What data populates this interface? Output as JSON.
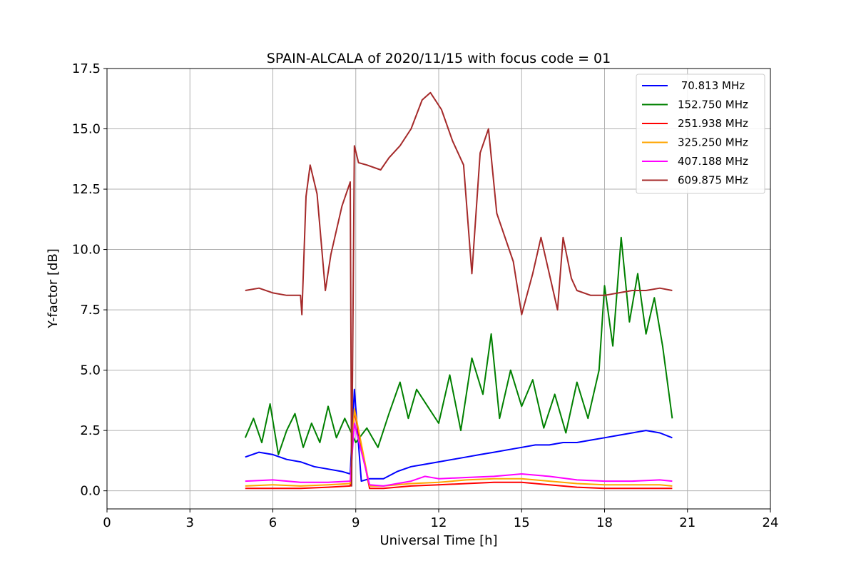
{
  "chart_data": {
    "type": "line",
    "title": "SPAIN-ALCALA of 2020/11/15 with focus code = 01",
    "xlabel": "Universal Time [h]",
    "ylabel": "Y-factor [dB]",
    "xlim": [
      0,
      24
    ],
    "ylim": [
      -0.75,
      17.5
    ],
    "xticks": [
      0,
      3,
      6,
      9,
      12,
      15,
      18,
      21,
      24
    ],
    "xtick_labels": [
      "0",
      "3",
      "6",
      "9",
      "12",
      "15",
      "18",
      "21",
      "24"
    ],
    "yticks": [
      0,
      2.5,
      5,
      7.5,
      10,
      12.5,
      15,
      17.5
    ],
    "ytick_labels": [
      "0.0",
      "2.5",
      "5.0",
      "7.5",
      "10.0",
      "12.5",
      "15.0",
      "17.5"
    ],
    "grid": true,
    "legend_position": "top-right",
    "series": [
      {
        "name": " 70.813 MHz",
        "color": "#0000ff",
        "x": [
          5.0,
          5.5,
          6.0,
          6.5,
          7.0,
          7.5,
          8.0,
          8.5,
          8.8,
          8.95,
          9.2,
          9.5,
          10.0,
          10.5,
          11.0,
          11.5,
          12.0,
          12.5,
          13.0,
          13.5,
          14.0,
          14.5,
          15.0,
          15.5,
          16.0,
          16.5,
          17.0,
          17.5,
          18.0,
          18.5,
          19.0,
          19.5,
          20.0,
          20.45
        ],
        "y": [
          1.4,
          1.6,
          1.5,
          1.3,
          1.2,
          1.0,
          0.9,
          0.8,
          0.7,
          4.2,
          0.4,
          0.5,
          0.5,
          0.8,
          1.0,
          1.1,
          1.2,
          1.3,
          1.4,
          1.5,
          1.6,
          1.7,
          1.8,
          1.9,
          1.9,
          2.0,
          2.0,
          2.1,
          2.2,
          2.3,
          2.4,
          2.5,
          2.4,
          2.2
        ]
      },
      {
        "name": "152.750 MHz",
        "color": "#008000",
        "x": [
          5.0,
          5.3,
          5.6,
          5.9,
          6.2,
          6.5,
          6.8,
          7.1,
          7.4,
          7.7,
          8.0,
          8.3,
          8.6,
          9.0,
          9.4,
          9.8,
          10.2,
          10.6,
          10.9,
          11.2,
          11.6,
          12.0,
          12.4,
          12.8,
          13.2,
          13.6,
          13.9,
          14.2,
          14.6,
          15.0,
          15.4,
          15.8,
          16.2,
          16.6,
          17.0,
          17.4,
          17.8,
          18.0,
          18.3,
          18.6,
          18.9,
          19.2,
          19.5,
          19.8,
          20.1,
          20.45
        ],
        "y": [
          2.2,
          3.0,
          2.0,
          3.6,
          1.5,
          2.5,
          3.2,
          1.8,
          2.8,
          2.0,
          3.5,
          2.2,
          3.0,
          2.0,
          2.6,
          1.8,
          3.2,
          4.5,
          3.0,
          4.2,
          3.5,
          2.8,
          4.8,
          2.5,
          5.5,
          4.0,
          6.5,
          3.0,
          5.0,
          3.5,
          4.6,
          2.6,
          4.0,
          2.4,
          4.5,
          3.0,
          5.0,
          8.5,
          6.0,
          10.5,
          7.0,
          9.0,
          6.5,
          8.0,
          6.0,
          3.0
        ]
      },
      {
        "name": "251.938 MHz",
        "color": "#ff0000",
        "x": [
          5.0,
          6.0,
          7.0,
          8.0,
          8.8,
          8.95,
          9.5,
          10.0,
          11.0,
          12.0,
          13.0,
          14.0,
          15.0,
          16.0,
          17.0,
          18.0,
          19.0,
          20.0,
          20.45
        ],
        "y": [
          0.1,
          0.1,
          0.1,
          0.15,
          0.2,
          3.3,
          0.1,
          0.1,
          0.2,
          0.25,
          0.3,
          0.35,
          0.35,
          0.25,
          0.15,
          0.1,
          0.1,
          0.1,
          0.1
        ]
      },
      {
        "name": "325.250 MHz",
        "color": "#ffa500",
        "x": [
          5.0,
          6.0,
          7.0,
          8.0,
          8.8,
          8.95,
          9.5,
          10.0,
          11.0,
          12.0,
          13.0,
          14.0,
          15.0,
          16.0,
          17.0,
          18.0,
          19.0,
          20.0,
          20.45
        ],
        "y": [
          0.2,
          0.25,
          0.2,
          0.25,
          0.3,
          3.4,
          0.2,
          0.2,
          0.3,
          0.35,
          0.45,
          0.5,
          0.5,
          0.4,
          0.3,
          0.25,
          0.25,
          0.25,
          0.2
        ]
      },
      {
        "name": "407.188 MHz",
        "color": "#ff00ff",
        "x": [
          5.0,
          6.0,
          7.0,
          8.0,
          8.8,
          8.95,
          9.5,
          10.0,
          11.0,
          11.5,
          12.0,
          13.0,
          14.0,
          15.0,
          16.0,
          17.0,
          18.0,
          19.0,
          20.0,
          20.45
        ],
        "y": [
          0.4,
          0.45,
          0.35,
          0.35,
          0.4,
          2.8,
          0.25,
          0.2,
          0.4,
          0.6,
          0.5,
          0.55,
          0.6,
          0.7,
          0.6,
          0.45,
          0.4,
          0.4,
          0.45,
          0.4
        ]
      },
      {
        "name": "609.875 MHz",
        "color": "#a52a2a",
        "x": [
          5.0,
          5.5,
          6.0,
          6.5,
          7.0,
          7.05,
          7.2,
          7.35,
          7.6,
          7.9,
          8.1,
          8.5,
          8.8,
          8.85,
          8.95,
          9.1,
          9.4,
          9.9,
          10.2,
          10.6,
          11.0,
          11.4,
          11.7,
          12.1,
          12.5,
          12.9,
          13.2,
          13.5,
          13.8,
          14.1,
          14.4,
          14.7,
          15.0,
          15.4,
          15.7,
          16.0,
          16.3,
          16.5,
          16.8,
          17.0,
          17.5,
          18.0,
          18.5,
          19.0,
          19.5,
          20.0,
          20.45
        ],
        "y": [
          8.3,
          8.4,
          8.2,
          8.1,
          8.1,
          7.3,
          12.2,
          13.5,
          12.3,
          8.3,
          9.8,
          11.8,
          12.8,
          0.2,
          14.3,
          13.6,
          13.5,
          13.3,
          13.8,
          14.3,
          15.0,
          16.2,
          16.5,
          15.8,
          14.5,
          13.5,
          9.0,
          14.0,
          15.0,
          11.5,
          10.5,
          9.5,
          7.3,
          9.0,
          10.5,
          9.0,
          7.5,
          10.5,
          8.8,
          8.3,
          8.1,
          8.1,
          8.2,
          8.3,
          8.3,
          8.4,
          8.3
        ]
      }
    ]
  }
}
